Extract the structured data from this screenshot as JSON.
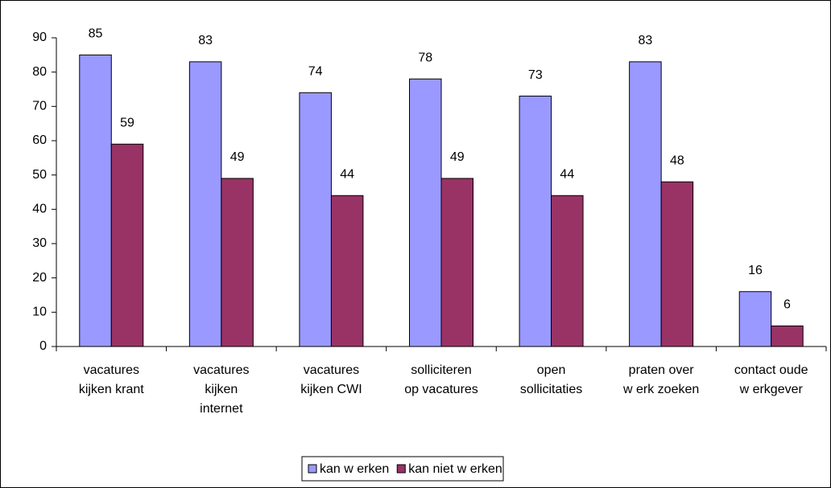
{
  "chart_data": {
    "type": "bar",
    "categories": [
      "vacatures\nkijken krant",
      "vacatures\nkijken\ninternet",
      "vacatures\nkijken CWI",
      "solliciteren\nop vacatures",
      "open\nsollicitaties",
      "praten over\nw erk zoeken",
      "contact oude\nw erkgever"
    ],
    "series": [
      {
        "name": "kan w erken",
        "color": "#9999ff",
        "values": [
          85,
          83,
          74,
          78,
          73,
          83,
          16
        ]
      },
      {
        "name": "kan niet w erken",
        "color": "#993366",
        "values": [
          59,
          49,
          44,
          49,
          44,
          48,
          6
        ]
      }
    ],
    "ylim": [
      0,
      90
    ],
    "yticks": [
      0,
      10,
      20,
      30,
      40,
      50,
      60,
      70,
      80,
      90
    ],
    "legend": "bottom"
  }
}
